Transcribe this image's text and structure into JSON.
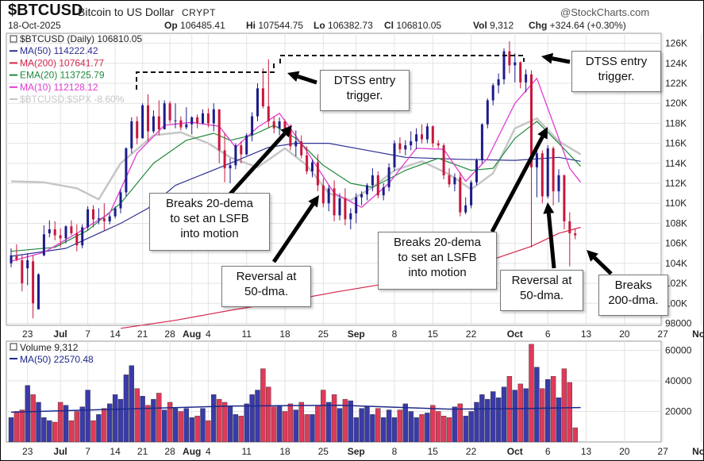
{
  "header": {
    "symbol": "$BTCUSD",
    "name": "Bitcoin to US Dollar",
    "exchange": "CRYPT",
    "date": "18-Oct-2025",
    "brand": "@StockCharts.com",
    "op_label": "Op",
    "op": "106485.41",
    "hi_label": "Hi",
    "hi": "107544.75",
    "lo_label": "Lo",
    "lo": "106382.73",
    "cl_label": "Cl",
    "cl": "106810.05",
    "vol_label": "Vol",
    "vol": "9,312",
    "chg_label": "Chg",
    "chg": "+324.64 (+0.30%)"
  },
  "legend": {
    "price": "$BTCUSD (Daily) 106810.05",
    "ma50": "MA(50) 114222.42",
    "ma200": "MA(200) 107641.77",
    "ema20": "EMA(20) 113725.79",
    "ma10": "MA(10) 112128.12",
    "rel": "$BTCUSD:$SPX -8.60%",
    "volume": "Volume 9,312",
    "volma": "MA(50) 22570.48"
  },
  "colors": {
    "up": "#1c1c8c",
    "down": "#c8173c",
    "ma50": "#2e3192",
    "ma200": "#d6264a",
    "ema20": "#1f8a3c",
    "ma10": "#e03cd2",
    "rel": "#c6c6c6",
    "vol_up": "#3a3aa8",
    "vol_down": "#de3a5a"
  },
  "annotations": [
    "DTSS entry\ntrigger.",
    "DTSS entry\ntrigger.",
    "Breaks 20-dema\nto set an LSFB\ninto motion",
    "Reversal at\n50-dma.",
    "Breaks 20-dema\nto set an LSFB\ninto motion",
    "Reversal at\n50-dma.",
    "Breaks\n200-dma."
  ],
  "chart_data": [
    {
      "type": "candlestick",
      "title": "$BTCUSD (Daily)",
      "y_ticks": [
        "126K",
        "124K",
        "122K",
        "120K",
        "118K",
        "116K",
        "114K",
        "112K",
        "110K",
        "108K",
        "106K",
        "104K",
        "102K",
        "100K",
        "98000"
      ],
      "ylim": [
        97800,
        127000
      ],
      "x_tick_labels": [
        "23",
        "Jul",
        "7",
        "14",
        "21",
        "28",
        "Aug",
        "4",
        "11",
        "18",
        "25",
        "Sep",
        "8",
        "15",
        "22",
        "Oct",
        "6",
        "13",
        "20",
        "27",
        "Nov"
      ],
      "x_tick_index": [
        3,
        9,
        14,
        19,
        24,
        29,
        33,
        36,
        43,
        50,
        57,
        63,
        70,
        77,
        84,
        92,
        98,
        105,
        112,
        119,
        126
      ],
      "grid": true,
      "bars": [
        [
          104000,
          105500,
          103600,
          104800
        ],
        [
          104700,
          105900,
          104200,
          104400
        ],
        [
          104300,
          104800,
          101200,
          102000
        ],
        [
          103500,
          105000,
          101800,
          104300
        ],
        [
          104200,
          104800,
          98500,
          100000
        ],
        [
          99400,
          103000,
          99400,
          102900
        ],
        [
          104800,
          107800,
          104700,
          106900
        ],
        [
          107000,
          108300,
          106600,
          107400
        ],
        [
          107400,
          108200,
          106300,
          106800
        ],
        [
          106800,
          107500,
          105600,
          106500
        ],
        [
          106500,
          107800,
          106000,
          107700
        ],
        [
          107700,
          108300,
          106800,
          107000
        ],
        [
          107000,
          107900,
          105200,
          105800
        ],
        [
          105800,
          107900,
          105500,
          107600
        ],
        [
          107600,
          109700,
          107300,
          109400
        ],
        [
          109400,
          109800,
          107600,
          108400
        ],
        [
          108400,
          109500,
          107900,
          108500
        ],
        [
          108500,
          110000,
          107300,
          108200
        ],
        [
          108200,
          108900,
          107900,
          108700
        ],
        [
          108700,
          109700,
          108500,
          109500
        ],
        [
          109500,
          111400,
          109000,
          111100
        ],
        [
          111100,
          115600,
          110700,
          115500
        ],
        [
          115500,
          118600,
          115000,
          118200
        ],
        [
          118200,
          118700,
          115900,
          116500
        ],
        [
          116500,
          120000,
          116500,
          119800
        ],
        [
          119800,
          120900,
          116200,
          117200
        ],
        [
          117200,
          119300,
          117000,
          118700
        ],
        [
          118700,
          120300,
          116800,
          117400
        ],
        [
          117400,
          120300,
          117400,
          120000
        ],
        [
          120000,
          120200,
          118000,
          118300
        ],
        [
          118300,
          120000,
          117500,
          118300
        ],
        [
          118300,
          118700,
          117300,
          117600
        ],
        [
          117600,
          119600,
          117400,
          117900
        ],
        [
          117900,
          118700,
          116900,
          118600
        ],
        [
          118600,
          118900,
          117500,
          118000
        ],
        [
          118000,
          119400,
          117900,
          119000
        ],
        [
          119000,
          119500,
          117600,
          118000
        ],
        [
          118000,
          120000,
          117200,
          119400
        ],
        [
          119400,
          119400,
          114000,
          115300
        ],
        [
          115300,
          117000,
          112100,
          113500
        ],
        [
          113500,
          114500,
          112000,
          113800
        ],
        [
          113800,
          116000,
          113400,
          115800
        ],
        [
          115800,
          116200,
          114000,
          114900
        ],
        [
          114900,
          117000,
          114800,
          116800
        ],
        [
          116800,
          119100,
          116200,
          118700
        ],
        [
          118700,
          122000,
          118200,
          121500
        ],
        [
          121500,
          123500,
          119500,
          119700
        ],
        [
          119700,
          124400,
          117600,
          118200
        ],
        [
          118200,
          118700,
          117000,
          117500
        ],
        [
          117500,
          118600,
          116800,
          118200
        ],
        [
          118200,
          118400,
          117300,
          117500
        ],
        [
          117500,
          117900,
          115300,
          115700
        ],
        [
          115700,
          117300,
          114700,
          116200
        ],
        [
          116200,
          116800,
          114500,
          114800
        ],
        [
          114800,
          115700,
          112900,
          113200
        ],
        [
          113200,
          114400,
          112600,
          114100
        ],
        [
          114100,
          114900,
          111200,
          111800
        ],
        [
          111800,
          112500,
          109600,
          110000
        ],
        [
          110000,
          111800,
          109200,
          111500
        ],
        [
          111500,
          112300,
          108200,
          108800
        ],
        [
          108800,
          111000,
          108300,
          110500
        ],
        [
          110500,
          111500,
          107800,
          108400
        ],
        [
          108400,
          109500,
          107400,
          109000
        ],
        [
          109000,
          111000,
          108000,
          110600
        ],
        [
          110600,
          111200,
          109800,
          110900
        ],
        [
          110900,
          112000,
          110300,
          111800
        ],
        [
          111800,
          113500,
          111200,
          112800
        ],
        [
          112800,
          113200,
          110500,
          110800
        ],
        [
          110800,
          112000,
          110300,
          111600
        ],
        [
          111600,
          114000,
          111200,
          113600
        ],
        [
          113600,
          116300,
          113200,
          116000
        ],
        [
          116000,
          116600,
          115000,
          115400
        ],
        [
          115400,
          116300,
          114800,
          115800
        ],
        [
          115800,
          117200,
          115300,
          116200
        ],
        [
          116200,
          117500,
          115400,
          116900
        ],
        [
          116900,
          117900,
          116000,
          116400
        ],
        [
          116400,
          118000,
          116000,
          117700
        ],
        [
          117700,
          117800,
          115600,
          116000
        ],
        [
          116000,
          116300,
          115500,
          115800
        ],
        [
          115800,
          116000,
          112400,
          112800
        ],
        [
          112800,
          113500,
          111600,
          111900
        ],
        [
          111900,
          113000,
          111200,
          112600
        ],
        [
          112600,
          113100,
          108700,
          109100
        ],
        [
          109100,
          110600,
          108900,
          109800
        ],
        [
          109800,
          112300,
          109500,
          112100
        ],
        [
          112100,
          114500,
          111800,
          114300
        ],
        [
          114300,
          118000,
          114000,
          117900
        ],
        [
          117900,
          120500,
          117500,
          120300
        ],
        [
          120300,
          122000,
          119800,
          121800
        ],
        [
          121800,
          123000,
          121000,
          122400
        ],
        [
          122400,
          125500,
          121900,
          125200
        ],
        [
          125200,
          126200,
          123000,
          123800
        ],
        [
          123800,
          125000,
          122100,
          124100
        ],
        [
          124100,
          124200,
          121500,
          122100
        ],
        [
          122100,
          123400,
          121100,
          122900
        ],
        [
          122900,
          123300,
          105600,
          113600
        ],
        [
          113600,
          115500,
          110600,
          115000
        ],
        [
          115000,
          115300,
          110000,
          110700
        ],
        [
          110700,
          115800,
          110500,
          115500
        ],
        [
          115500,
          115700,
          109800,
          111200
        ],
        [
          111200,
          113400,
          110100,
          112800
        ],
        [
          112800,
          112900,
          107400,
          108200
        ],
        [
          108200,
          109100,
          103700,
          107000
        ],
        [
          107000,
          107500,
          106400,
          106800
        ]
      ],
      "ma50": [
        [
          0,
          104700
        ],
        [
          10,
          105500
        ],
        [
          20,
          108000
        ],
        [
          25,
          109500
        ],
        [
          30,
          111800
        ],
        [
          40,
          114000
        ],
        [
          47,
          115600
        ],
        [
          52,
          116000
        ],
        [
          58,
          116000
        ],
        [
          64,
          115400
        ],
        [
          72,
          114600
        ],
        [
          82,
          114400
        ],
        [
          92,
          114300
        ],
        [
          100,
          114600
        ],
        [
          104,
          114200
        ]
      ],
      "ma200": [
        [
          20,
          97500
        ],
        [
          30,
          98300
        ],
        [
          40,
          99300
        ],
        [
          50,
          100200
        ],
        [
          60,
          101200
        ],
        [
          70,
          102100
        ],
        [
          80,
          103200
        ],
        [
          88,
          104400
        ],
        [
          95,
          105700
        ],
        [
          100,
          107000
        ],
        [
          104,
          107600
        ]
      ],
      "ema20": [
        [
          0,
          105200
        ],
        [
          8,
          105600
        ],
        [
          14,
          107300
        ],
        [
          20,
          110000
        ],
        [
          26,
          114000
        ],
        [
          32,
          116300
        ],
        [
          37,
          117000
        ],
        [
          40,
          116300
        ],
        [
          44,
          116800
        ],
        [
          48,
          117800
        ],
        [
          52,
          116500
        ],
        [
          57,
          113800
        ],
        [
          62,
          112000
        ],
        [
          66,
          111600
        ],
        [
          72,
          113300
        ],
        [
          78,
          114500
        ],
        [
          84,
          113300
        ],
        [
          88,
          113500
        ],
        [
          92,
          116500
        ],
        [
          96,
          118200
        ],
        [
          100,
          116000
        ],
        [
          104,
          113700
        ]
      ],
      "ma10": [
        [
          0,
          104200
        ],
        [
          6,
          105100
        ],
        [
          12,
          107000
        ],
        [
          18,
          109000
        ],
        [
          23,
          115000
        ],
        [
          28,
          117800
        ],
        [
          33,
          118100
        ],
        [
          38,
          117700
        ],
        [
          41,
          115600
        ],
        [
          45,
          117600
        ],
        [
          49,
          119000
        ],
        [
          54,
          115200
        ],
        [
          59,
          111000
        ],
        [
          64,
          109600
        ],
        [
          69,
          112000
        ],
        [
          74,
          115500
        ],
        [
          79,
          115400
        ],
        [
          83,
          112200
        ],
        [
          87,
          114500
        ],
        [
          92,
          120000
        ],
        [
          96,
          122500
        ],
        [
          99,
          118000
        ],
        [
          102,
          113500
        ],
        [
          104,
          112100
        ]
      ],
      "rel": [
        [
          0,
          112200
        ],
        [
          6,
          112100
        ],
        [
          12,
          111500
        ],
        [
          16,
          110400
        ],
        [
          20,
          114000
        ],
        [
          26,
          116800
        ],
        [
          31,
          117100
        ],
        [
          36,
          116000
        ],
        [
          40,
          114600
        ],
        [
          45,
          113600
        ],
        [
          50,
          115500
        ],
        [
          54,
          113800
        ],
        [
          58,
          111000
        ],
        [
          62,
          110300
        ],
        [
          66,
          111600
        ],
        [
          70,
          113300
        ],
        [
          75,
          114200
        ],
        [
          80,
          112900
        ],
        [
          84,
          111400
        ],
        [
          88,
          113000
        ],
        [
          92,
          117500
        ],
        [
          96,
          118500
        ],
        [
          100,
          116200
        ],
        [
          104,
          114900
        ]
      ]
    },
    {
      "type": "bar",
      "title": "Volume",
      "y_ticks": [
        "60000",
        "40000",
        "20000"
      ],
      "ylim": [
        0,
        66000
      ],
      "x_tick_labels": [
        "23",
        "Jul",
        "7",
        "14",
        "21",
        "28",
        "Aug",
        "4",
        "11",
        "18",
        "25",
        "Sep",
        "8",
        "15",
        "22",
        "Oct",
        "6",
        "13",
        "20",
        "27",
        "Nov"
      ],
      "volume": [
        16000,
        20000,
        21000,
        37000,
        31000,
        26000,
        16000,
        14000,
        13000,
        26000,
        24000,
        14000,
        20000,
        23000,
        34000,
        14000,
        18000,
        22000,
        25000,
        31000,
        28000,
        44000,
        50000,
        35000,
        30000,
        24000,
        28000,
        32000,
        21000,
        26000,
        22000,
        20000,
        22000,
        16000,
        17000,
        22000,
        14000,
        31000,
        28000,
        26000,
        23000,
        18000,
        17000,
        25000,
        31000,
        34000,
        48000,
        36000,
        23000,
        24000,
        20000,
        25000,
        21000,
        26000,
        18000,
        18000,
        24000,
        34000,
        26000,
        31000,
        22000,
        28000,
        27000,
        16000,
        22000,
        23000,
        18000,
        22000,
        16000,
        21000,
        16000,
        21000,
        25000,
        20000,
        16000,
        18000,
        19000,
        24000,
        20000,
        17000,
        16000,
        23000,
        25000,
        17000,
        20000,
        26000,
        31000,
        28000,
        33000,
        29000,
        36000,
        43000,
        34000,
        38000,
        35000,
        64000,
        49000,
        35000,
        41000,
        43000,
        29000,
        48000,
        39000,
        9312
      ],
      "vol_ma": [
        [
          0,
          19500
        ],
        [
          20,
          21500
        ],
        [
          40,
          23500
        ],
        [
          60,
          24000
        ],
        [
          80,
          21500
        ],
        [
          92,
          21800
        ],
        [
          104,
          22570
        ]
      ]
    }
  ]
}
